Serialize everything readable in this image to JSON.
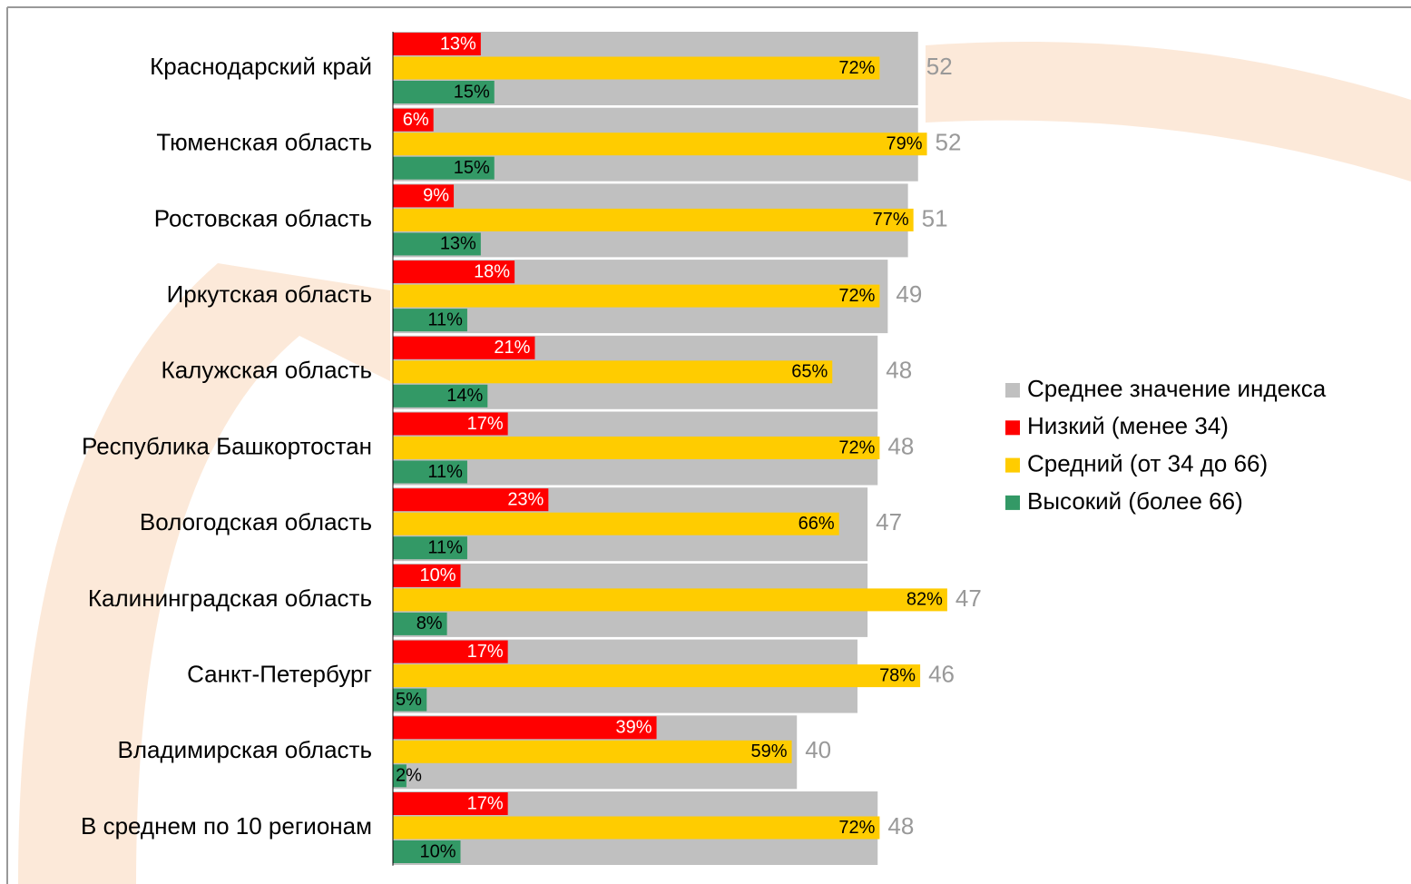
{
  "chart_data": {
    "type": "bar",
    "orientation": "horizontal",
    "categories": [
      "Краснодарский край",
      "Тюменская область",
      "Ростовская область",
      "Иркутская область",
      "Калужская область",
      "Республика Башкортостан",
      "Вологодская область",
      "Калининградская область",
      "Санкт-Петербург",
      "Владимирская область",
      "В среднем по 10 регионам"
    ],
    "xlim": [
      0,
      100
    ],
    "x2lim": [
      0,
      100
    ],
    "series": [
      {
        "name": "Среднее значение индекса",
        "color": "#c0c0c0",
        "axis": "x2",
        "values": [
          52,
          52,
          51,
          49,
          48,
          48,
          47,
          47,
          46,
          40,
          48
        ]
      },
      {
        "name": "Низкий (менее 34)",
        "color": "#ff0000",
        "values": [
          13,
          6,
          9,
          18,
          21,
          17,
          23,
          10,
          17,
          39,
          17
        ],
        "value_labels": [
          "13%",
          "6%",
          "9%",
          "18%",
          "21%",
          "17%",
          "23%",
          "10%",
          "17%",
          "39%",
          "17%"
        ]
      },
      {
        "name": "Средний (от 34 до 66)",
        "color": "#ffcc00",
        "values": [
          72,
          79,
          77,
          72,
          65,
          72,
          66,
          82,
          78,
          59,
          72
        ],
        "value_labels": [
          "72%",
          "79%",
          "77%",
          "72%",
          "65%",
          "72%",
          "66%",
          "82%",
          "78%",
          "59%",
          "72%"
        ]
      },
      {
        "name": "Высокий (более 66)",
        "color": "#339966",
        "values": [
          15,
          15,
          13,
          11,
          14,
          11,
          11,
          8,
          5,
          2,
          10
        ],
        "value_labels": [
          "15%",
          "15%",
          "13%",
          "11%",
          "14%",
          "11%",
          "11%",
          "8%",
          "5%",
          "2%",
          "10%"
        ]
      }
    ],
    "legend": "right"
  }
}
